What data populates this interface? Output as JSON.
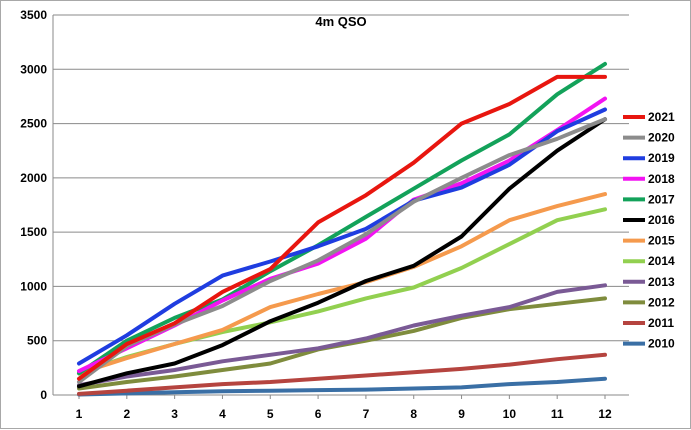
{
  "chart_data": {
    "type": "line",
    "title": "4m QSO",
    "xlabel": "",
    "ylabel": "",
    "x": [
      1,
      2,
      3,
      4,
      5,
      6,
      7,
      8,
      9,
      10,
      11,
      12
    ],
    "xlim": [
      1,
      12
    ],
    "ylim": [
      0,
      3500
    ],
    "y_ticks": [
      0,
      500,
      1000,
      1500,
      2000,
      2500,
      3000,
      3500
    ],
    "grid": "horizontal",
    "legend_position": "right",
    "series": [
      {
        "name": "2021",
        "color": "#e8160f",
        "values": [
          150,
          470,
          660,
          950,
          1160,
          1590,
          1840,
          2140,
          2500,
          2680,
          2930,
          2930
        ]
      },
      {
        "name": "2020",
        "color": "#8c8c8c",
        "values": [
          120,
          450,
          650,
          820,
          1050,
          1240,
          1480,
          1780,
          2000,
          2210,
          2360,
          2540
        ]
      },
      {
        "name": "2019",
        "color": "#1f3de0",
        "values": [
          290,
          550,
          840,
          1100,
          1230,
          1370,
          1530,
          1790,
          1910,
          2120,
          2430,
          2630
        ]
      },
      {
        "name": "2018",
        "color": "#f213f2",
        "values": [
          220,
          430,
          640,
          870,
          1070,
          1210,
          1440,
          1800,
          1950,
          2160,
          2440,
          2730
        ]
      },
      {
        "name": "2017",
        "color": "#13a25a",
        "values": [
          200,
          500,
          710,
          880,
          1140,
          1380,
          1640,
          1900,
          2160,
          2400,
          2770,
          3050
        ]
      },
      {
        "name": "2016",
        "color": "#000000",
        "values": [
          80,
          200,
          290,
          460,
          680,
          850,
          1050,
          1190,
          1460,
          1900,
          2250,
          2540
        ]
      },
      {
        "name": "2015",
        "color": "#f59a4d",
        "values": [
          200,
          340,
          470,
          600,
          810,
          930,
          1040,
          1180,
          1370,
          1610,
          1740,
          1850
        ]
      },
      {
        "name": "2014",
        "color": "#92d050",
        "values": [
          200,
          350,
          470,
          580,
          670,
          770,
          890,
          990,
          1170,
          1390,
          1610,
          1710
        ]
      },
      {
        "name": "2013",
        "color": "#7a5a95",
        "values": [
          90,
          170,
          230,
          310,
          370,
          430,
          520,
          640,
          730,
          810,
          950,
          1010
        ]
      },
      {
        "name": "2012",
        "color": "#7f8c3d",
        "values": [
          60,
          120,
          170,
          230,
          290,
          420,
          500,
          590,
          710,
          790,
          840,
          890
        ]
      },
      {
        "name": "2011",
        "color": "#b5443f",
        "values": [
          10,
          40,
          70,
          100,
          120,
          150,
          180,
          210,
          240,
          280,
          330,
          370
        ]
      },
      {
        "name": "2010",
        "color": "#3a6fa5",
        "values": [
          5,
          15,
          25,
          35,
          40,
          45,
          50,
          60,
          70,
          100,
          120,
          150
        ]
      }
    ]
  }
}
